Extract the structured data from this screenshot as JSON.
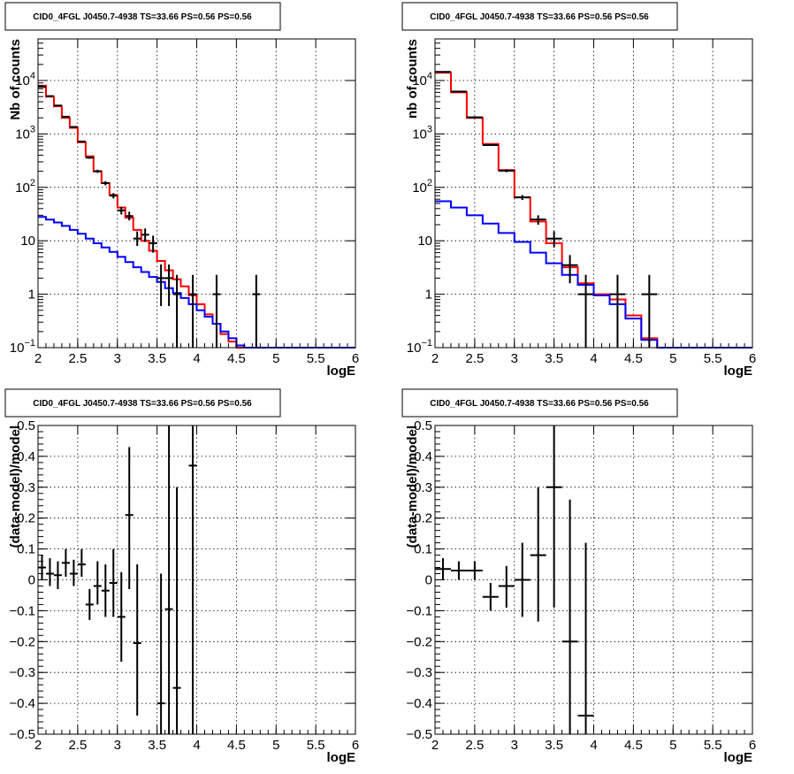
{
  "chart_data": [
    {
      "type": "histogram",
      "title": "CID0_4FGL J0450.7-4938 TS=33.66 PS=0.56 PS=0.56",
      "xlabel": "logE",
      "ylabel": "Nb of counts",
      "xlim": [
        2,
        6
      ],
      "ylim": [
        0.1,
        60000
      ],
      "yscale": "log",
      "grid": true,
      "x_ticks": [
        "2",
        "2.5",
        "3",
        "3.5",
        "4",
        "4.5",
        "5",
        "5.5",
        "6"
      ],
      "y_ticks": [
        {
          "value": 0.1,
          "mantissa": "10",
          "exp": "−1"
        },
        {
          "value": 1,
          "mantissa": "1",
          "exp": ""
        },
        {
          "value": 10,
          "mantissa": "10",
          "exp": ""
        },
        {
          "value": 100,
          "mantissa": "10",
          "exp": "2"
        },
        {
          "value": 1000,
          "mantissa": "10",
          "exp": "3"
        },
        {
          "value": 10000,
          "mantissa": "10",
          "exp": "4"
        }
      ],
      "series": [
        {
          "kind": "step",
          "color": "#ff0000",
          "edges": [
            2,
            2.1,
            2.2,
            2.3,
            2.4,
            2.5,
            2.6,
            2.7,
            2.8,
            2.9,
            3,
            3.1,
            3.2,
            3.3,
            3.4,
            3.5,
            3.6,
            3.7,
            3.8,
            3.9,
            4,
            4.1,
            4.2,
            4.3,
            4.4,
            4.5,
            4.6,
            4.7,
            4.8,
            4.9,
            5,
            5.1,
            5.2,
            5.3,
            5.4,
            5.5,
            5.6,
            5.7,
            5.8,
            5.9,
            6
          ],
          "values": [
            8000,
            5000,
            3300,
            2000,
            1300,
            700,
            380,
            200,
            120,
            72,
            42,
            27,
            16,
            10,
            6.5,
            4.2,
            2.8,
            1.9,
            1.4,
            0.95,
            0.65,
            0.42,
            0.28,
            0.18,
            0.13,
            0.1,
            0.1,
            0.1,
            0.1,
            0.1,
            0.1,
            0.1,
            0.1,
            0.1,
            0.1,
            0.1,
            0.1,
            0.1,
            0.1,
            0.1
          ]
        },
        {
          "kind": "step",
          "color": "#0000ff",
          "edges": [
            2,
            2.1,
            2.2,
            2.3,
            2.4,
            2.5,
            2.6,
            2.7,
            2.8,
            2.9,
            3,
            3.1,
            3.2,
            3.3,
            3.4,
            3.5,
            3.6,
            3.7,
            3.8,
            3.9,
            4,
            4.1,
            4.2,
            4.3,
            4.4,
            4.5,
            4.6,
            4.7,
            4.8,
            4.9,
            5,
            5.1,
            5.2,
            5.3,
            5.4,
            5.5,
            5.6,
            5.7,
            5.8,
            5.9,
            6
          ],
          "values": [
            28,
            25,
            22,
            19,
            16,
            13.5,
            11,
            9,
            7.5,
            6.2,
            5,
            4,
            3.2,
            2.6,
            2.1,
            1.7,
            1.3,
            1.05,
            0.85,
            0.65,
            0.5,
            0.38,
            0.28,
            0.2,
            0.15,
            0.11,
            0.1,
            0.1,
            0.1,
            0.1,
            0.1,
            0.1,
            0.1,
            0.1,
            0.1,
            0.1,
            0.1,
            0.1,
            0.1,
            0.1
          ]
        },
        {
          "kind": "points",
          "color": "#000000",
          "xerr": 0.05,
          "points": [
            {
              "x": 2.05,
              "y": 7600,
              "lo": 7450,
              "hi": 7750
            },
            {
              "x": 2.15,
              "y": 5100,
              "lo": 4980,
              "hi": 5220
            },
            {
              "x": 2.25,
              "y": 3400,
              "lo": 3300,
              "hi": 3500
            },
            {
              "x": 2.35,
              "y": 2100,
              "lo": 2030,
              "hi": 2170
            },
            {
              "x": 2.45,
              "y": 1350,
              "lo": 1300,
              "hi": 1400
            },
            {
              "x": 2.55,
              "y": 720,
              "lo": 695,
              "hi": 745
            },
            {
              "x": 2.65,
              "y": 360,
              "lo": 342,
              "hi": 378
            },
            {
              "x": 2.75,
              "y": 200,
              "lo": 186,
              "hi": 214
            },
            {
              "x": 2.85,
              "y": 120,
              "lo": 109,
              "hi": 131
            },
            {
              "x": 2.95,
              "y": 70,
              "lo": 62,
              "hi": 78
            },
            {
              "x": 3.05,
              "y": 37,
              "lo": 31,
              "hi": 43
            },
            {
              "x": 3.15,
              "y": 29,
              "lo": 24,
              "hi": 35
            },
            {
              "x": 3.25,
              "y": 11,
              "lo": 8,
              "hi": 15
            },
            {
              "x": 3.35,
              "y": 13,
              "lo": 9.5,
              "hi": 17
            },
            {
              "x": 3.45,
              "y": 9,
              "lo": 6,
              "hi": 12.5
            },
            {
              "x": 3.55,
              "y": 2,
              "lo": 0.6,
              "hi": 3.6
            },
            {
              "x": 3.65,
              "y": 2,
              "lo": 0.6,
              "hi": 3.6
            },
            {
              "x": 3.75,
              "y": 1,
              "lo": 0.1,
              "hi": 2.3
            },
            {
              "x": 3.95,
              "y": 1,
              "lo": 0.1,
              "hi": 2.3
            },
            {
              "x": 4.25,
              "y": 1,
              "lo": 0.1,
              "hi": 2.3
            },
            {
              "x": 4.75,
              "y": 1,
              "lo": 0.1,
              "hi": 2.3
            }
          ]
        }
      ]
    },
    {
      "type": "histogram",
      "title": "CID0_4FGL J0450.7-4938 TS=33.66 PS=0.56 PS=0.56",
      "xlabel": "logE",
      "ylabel": "nb of counts",
      "xlim": [
        2,
        6
      ],
      "ylim": [
        0.1,
        60000
      ],
      "yscale": "log",
      "grid": true,
      "x_ticks": [
        "2",
        "2.5",
        "3",
        "3.5",
        "4",
        "4.5",
        "5",
        "5.5",
        "6"
      ],
      "y_ticks": [
        {
          "value": 0.1,
          "mantissa": "10",
          "exp": "−1"
        },
        {
          "value": 1,
          "mantissa": "1",
          "exp": ""
        },
        {
          "value": 10,
          "mantissa": "10",
          "exp": ""
        },
        {
          "value": 100,
          "mantissa": "10",
          "exp": "2"
        },
        {
          "value": 1000,
          "mantissa": "10",
          "exp": "3"
        },
        {
          "value": 10000,
          "mantissa": "10",
          "exp": "4"
        }
      ],
      "series": [
        {
          "kind": "step",
          "color": "#ff0000",
          "edges": [
            2,
            2.2,
            2.4,
            2.6,
            2.8,
            3,
            3.2,
            3.4,
            3.6,
            3.8,
            4,
            4.2,
            4.4,
            4.6,
            4.8,
            5,
            5.2,
            5.4,
            5.6,
            5.8,
            6
          ],
          "values": [
            14000,
            6000,
            2000,
            650,
            210,
            65,
            23,
            9,
            3.2,
            1.6,
            1,
            0.8,
            0.4,
            0.15,
            0.1,
            0.1,
            0.1,
            0.1,
            0.1,
            0.1
          ]
        },
        {
          "kind": "step",
          "color": "#0000ff",
          "edges": [
            2,
            2.2,
            2.4,
            2.6,
            2.8,
            3,
            3.2,
            3.4,
            3.6,
            3.8,
            4,
            4.2,
            4.4,
            4.6,
            4.8,
            5,
            5.2,
            5.4,
            5.6,
            5.8,
            6
          ],
          "values": [
            55,
            42,
            30,
            21,
            14,
            9.5,
            6,
            3.8,
            2.3,
            1.5,
            0.95,
            0.65,
            0.35,
            0.14,
            0.1,
            0.1,
            0.1,
            0.1,
            0.1,
            0.1
          ]
        },
        {
          "kind": "points",
          "color": "#000000",
          "xerr": 0.1,
          "points": [
            {
              "x": 2.1,
              "y": 14500,
              "lo": 14200,
              "hi": 14800
            },
            {
              "x": 2.3,
              "y": 6200,
              "lo": 6050,
              "hi": 6350
            },
            {
              "x": 2.5,
              "y": 2050,
              "lo": 1970,
              "hi": 2130
            },
            {
              "x": 2.7,
              "y": 620,
              "lo": 595,
              "hi": 645
            },
            {
              "x": 2.9,
              "y": 205,
              "lo": 192,
              "hi": 218
            },
            {
              "x": 3.1,
              "y": 65,
              "lo": 58,
              "hi": 72
            },
            {
              "x": 3.3,
              "y": 25,
              "lo": 20,
              "hi": 30
            },
            {
              "x": 3.5,
              "y": 11,
              "lo": 7.5,
              "hi": 15
            },
            {
              "x": 3.7,
              "y": 3.5,
              "lo": 1.6,
              "hi": 5.4
            },
            {
              "x": 3.9,
              "y": 1,
              "lo": 0.1,
              "hi": 2.3
            },
            {
              "x": 4.3,
              "y": 1,
              "lo": 0.1,
              "hi": 2.3
            },
            {
              "x": 4.7,
              "y": 1,
              "lo": 0.1,
              "hi": 2.3
            }
          ]
        }
      ]
    },
    {
      "type": "scatter",
      "title": "CID0_4FGL J0450.7-4938 TS=33.66 PS=0.56 PS=0.56",
      "xlabel": "logE",
      "ylabel": "(data-model)/model",
      "xlim": [
        2,
        6
      ],
      "ylim": [
        -0.5,
        0.5
      ],
      "yscale": "linear",
      "grid": true,
      "x_ticks": [
        "2",
        "2.5",
        "3",
        "3.5",
        "4",
        "4.5",
        "5",
        "5.5",
        "6"
      ],
      "y_ticks": [
        "−0.5",
        "−0.4",
        "−0.3",
        "−0.2",
        "−0.1",
        "0",
        "0.1",
        "0.2",
        "0.3",
        "0.4",
        "0.5"
      ],
      "series": [
        {
          "kind": "points",
          "color": "#000000",
          "xerr": 0.05,
          "points": [
            {
              "x": 2.05,
              "y": 0.04,
              "lo": 0.0,
              "hi": 0.08
            },
            {
              "x": 2.15,
              "y": 0.02,
              "lo": -0.02,
              "hi": 0.07
            },
            {
              "x": 2.25,
              "y": 0.015,
              "lo": -0.03,
              "hi": 0.06
            },
            {
              "x": 2.35,
              "y": 0.055,
              "lo": 0.01,
              "hi": 0.1
            },
            {
              "x": 2.45,
              "y": 0.02,
              "lo": -0.02,
              "hi": 0.065
            },
            {
              "x": 2.55,
              "y": 0.05,
              "lo": 0.01,
              "hi": 0.1
            },
            {
              "x": 2.65,
              "y": -0.08,
              "lo": -0.13,
              "hi": -0.03
            },
            {
              "x": 2.75,
              "y": -0.02,
              "lo": -0.08,
              "hi": 0.06
            },
            {
              "x": 2.85,
              "y": -0.035,
              "lo": -0.12,
              "hi": 0.05
            },
            {
              "x": 2.95,
              "y": -0.01,
              "lo": -0.12,
              "hi": 0.1
            },
            {
              "x": 3.05,
              "y": -0.12,
              "lo": -0.265,
              "hi": 0.025
            },
            {
              "x": 3.15,
              "y": 0.21,
              "lo": -0.03,
              "hi": 0.43
            },
            {
              "x": 3.25,
              "y": -0.205,
              "lo": -0.44,
              "hi": 0.05
            },
            {
              "x": 3.55,
              "y": -0.4,
              "lo": -0.5,
              "hi": 0.02
            },
            {
              "x": 3.65,
              "y": -0.095,
              "lo": -0.5,
              "hi": 0.5
            },
            {
              "x": 3.75,
              "y": -0.35,
              "lo": -0.5,
              "hi": 0.3
            },
            {
              "x": 3.95,
              "y": 0.37,
              "lo": -0.5,
              "hi": 0.5
            }
          ]
        }
      ]
    },
    {
      "type": "scatter",
      "title": "CID0_4FGL J0450.7-4938 TS=33.66 PS=0.56 PS=0.56",
      "xlabel": "logE",
      "ylabel": "(data-model)/model",
      "xlim": [
        2,
        6
      ],
      "ylim": [
        -0.5,
        0.5
      ],
      "yscale": "linear",
      "grid": true,
      "x_ticks": [
        "2",
        "2.5",
        "3",
        "3.5",
        "4",
        "4.5",
        "5",
        "5.5",
        "6"
      ],
      "y_ticks": [
        "−0.5",
        "−0.4",
        "−0.3",
        "−0.2",
        "−0.1",
        "0",
        "0.1",
        "0.2",
        "0.3",
        "0.4",
        "0.5"
      ],
      "series": [
        {
          "kind": "points",
          "color": "#000000",
          "xerr": 0.1,
          "points": [
            {
              "x": 2.1,
              "y": 0.035,
              "lo": 0.0,
              "hi": 0.07
            },
            {
              "x": 2.3,
              "y": 0.03,
              "lo": 0.0,
              "hi": 0.06
            },
            {
              "x": 2.5,
              "y": 0.03,
              "lo": 0.0,
              "hi": 0.06
            },
            {
              "x": 2.7,
              "y": -0.055,
              "lo": -0.1,
              "hi": -0.01
            },
            {
              "x": 2.9,
              "y": -0.02,
              "lo": -0.09,
              "hi": 0.045
            },
            {
              "x": 3.1,
              "y": 0.0,
              "lo": -0.12,
              "hi": 0.12
            },
            {
              "x": 3.3,
              "y": 0.08,
              "lo": -0.135,
              "hi": 0.3
            },
            {
              "x": 3.5,
              "y": 0.3,
              "lo": -0.09,
              "hi": 0.5
            },
            {
              "x": 3.7,
              "y": -0.2,
              "lo": -0.5,
              "hi": 0.26
            },
            {
              "x": 3.9,
              "y": -0.44,
              "lo": -0.5,
              "hi": 0.12
            }
          ]
        }
      ]
    }
  ]
}
